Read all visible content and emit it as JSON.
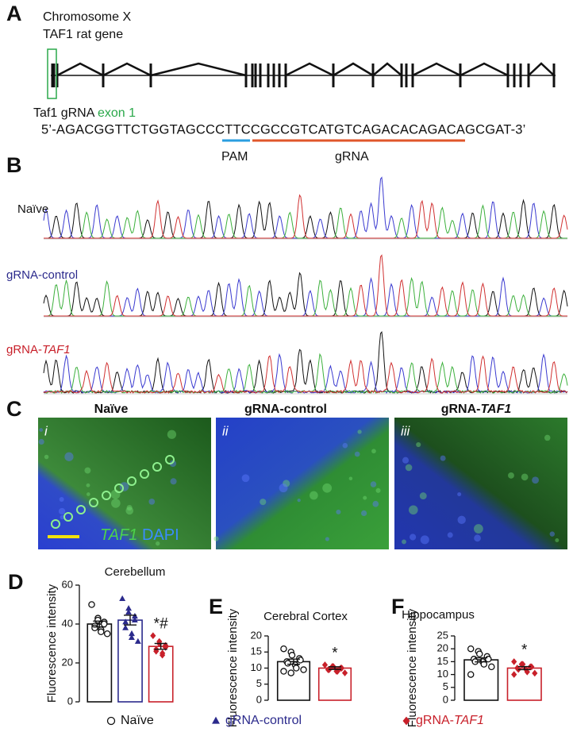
{
  "panel_a": {
    "label": "A",
    "chromosome": "Chromosome X",
    "gene": "TAF1 rat gene",
    "grna_label": "Taf1 gRNA",
    "exon_label": "exon 1",
    "sequence": "5’-AGACGGTTCTGGTAGCCCTTCCGCCGTCATGTCAGACACAGACAGCGAT-3’",
    "pam": "PAM",
    "grna": "gRNA"
  },
  "panel_b": {
    "label": "B",
    "rows": [
      {
        "label": "Naïve"
      },
      {
        "label": "gRNA-control"
      },
      {
        "label": "gRNA-",
        "label_italic": "TAF1"
      }
    ]
  },
  "panel_c": {
    "label": "C",
    "images": [
      {
        "title": "Naïve",
        "index": "i"
      },
      {
        "title": "gRNA-control",
        "index": "ii"
      },
      {
        "title": "gRNA-",
        "title_italic": "TAF1",
        "index": "iii"
      }
    ],
    "stain_1": "TAF1",
    "stain_2": "DAPI"
  },
  "legend": [
    {
      "label": "Naïve",
      "color": "#111111"
    },
    {
      "label": "gRNA-control",
      "color": "#2b2a8c"
    },
    {
      "label": "gRNA-",
      "label_italic": "TAF1",
      "color": "#c8202a"
    }
  ],
  "chart_data": [
    {
      "type": "bar",
      "label": "D",
      "title": "Cerebellum",
      "ylabel": "Fluorescence intensity",
      "ylim": [
        0,
        60
      ],
      "yticks": [
        0,
        20,
        40,
        60
      ],
      "series": [
        {
          "color": "#111111",
          "marker": "circle",
          "values": [
            40
          ],
          "errors": [
            1.5
          ],
          "points": [
            50,
            43,
            42,
            41,
            40,
            39,
            38,
            37,
            36,
            35
          ]
        },
        {
          "color": "#2b2a8c",
          "marker": "triangle",
          "values": [
            42
          ],
          "errors": [
            2.5
          ],
          "points": [
            53,
            48,
            46,
            44,
            42,
            41,
            38,
            35,
            33,
            31
          ]
        },
        {
          "color": "#c8202a",
          "marker": "diamond",
          "values": [
            28.5
          ],
          "errors": [
            1.5
          ],
          "points": [
            34,
            31,
            30,
            29,
            28,
            27,
            26,
            25,
            24
          ],
          "annotation": "*#"
        }
      ]
    },
    {
      "type": "bar",
      "label": "E",
      "title": "Cerebral Cortex",
      "ylabel": "Fluorescence intensity",
      "ylim": [
        0,
        20
      ],
      "yticks": [
        0,
        5,
        10,
        15,
        20
      ],
      "series": [
        {
          "color": "#111111",
          "marker": "circle",
          "values": [
            12
          ],
          "errors": [
            0.8
          ],
          "points": [
            16,
            15,
            14,
            13,
            12.5,
            12,
            11.5,
            11,
            10,
            9.5,
            9,
            8.5
          ]
        },
        {
          "color": "#c8202a",
          "marker": "diamond",
          "values": [
            10
          ],
          "errors": [
            0.4
          ],
          "points": [
            11,
            10.5,
            10.5,
            10,
            10,
            9.5,
            9.5,
            9,
            9,
            8.5
          ],
          "annotation": "*"
        }
      ]
    },
    {
      "type": "bar",
      "label": "F",
      "title": "Hippocampus",
      "ylabel": "Fluorescence intensity",
      "ylim": [
        0,
        25
      ],
      "yticks": [
        0,
        5,
        10,
        15,
        20,
        25
      ],
      "series": [
        {
          "color": "#111111",
          "marker": "circle",
          "values": [
            15.7
          ],
          "errors": [
            0.8
          ],
          "points": [
            20,
            19,
            18,
            17,
            16,
            16,
            15,
            15,
            14,
            13,
            10
          ]
        },
        {
          "color": "#c8202a",
          "marker": "diamond",
          "values": [
            12.5
          ],
          "errors": [
            0.6
          ],
          "points": [
            15,
            14,
            14,
            13,
            13,
            12.5,
            12,
            12,
            11,
            10.5,
            10
          ],
          "annotation": "*"
        }
      ]
    }
  ]
}
